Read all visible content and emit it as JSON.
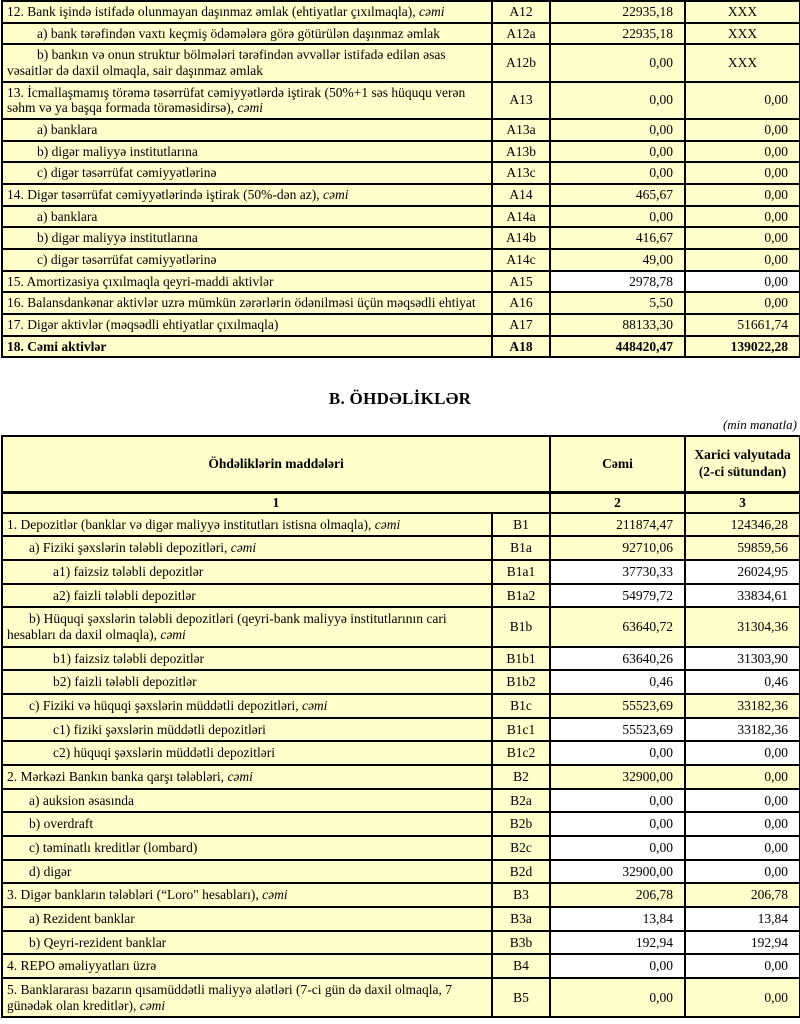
{
  "page": {
    "section_b_title": "B. ÖHDƏLİKLƏR",
    "unit_note": "(min manatla)"
  },
  "assets_table": {
    "rows": [
      {
        "code": "A12",
        "label": "12. Bank işində istifadə olunmayan daşınmaz əmlak (ehtiyatlar çıxılmaqla), ",
        "suffix": "cəmi",
        "indent": 0,
        "total": "22935,18",
        "foreign": "XXX"
      },
      {
        "code": "A12a",
        "label": "a) bank tərəfindən vaxtı keçmiş ödəmələrə görə götürülən daşınmaz əmlak",
        "indent": 1,
        "total": "22935,18",
        "foreign": "XXX"
      },
      {
        "code": "A12b",
        "label": "b) bankın və onun struktur bölmələri tərəfindən əvvəllər istifadə edilən əsas vəsaitlər də daxil olmaqla, sair daşınmaz əmlak",
        "indent": 1,
        "total": "0,00",
        "foreign": "XXX"
      },
      {
        "code": "A13",
        "label": "13. İcmallaşmamış törəmə təsərrüfat cəmiyyətlərdə iştirak (50%+1 səs hüququ verən səhm və ya başqa formada törəməsidirsə), ",
        "suffix": "cəmi",
        "indent": 0,
        "total": "0,00",
        "foreign": "0,00"
      },
      {
        "code": "A13a",
        "label": "a) banklara",
        "indent": 1,
        "total": "0,00",
        "foreign": "0,00"
      },
      {
        "code": "A13b",
        "label": "b) digər maliyyə institutlarına",
        "indent": 1,
        "total": "0,00",
        "foreign": "0,00"
      },
      {
        "code": "A13c",
        "label": "c) digər təsərrüfat cəmiyyətlərinə",
        "indent": 1,
        "total": "0,00",
        "foreign": "0,00"
      },
      {
        "code": "A14",
        "label": "14. Digər təsərrüfat cəmiyyətlərində iştirak (50%-dən az), ",
        "suffix": "cəmi",
        "indent": 0,
        "total": "465,67",
        "foreign": "0,00"
      },
      {
        "code": "A14a",
        "label": "a) banklara",
        "indent": 1,
        "total": "0,00",
        "foreign": "0,00"
      },
      {
        "code": "A14b",
        "label": "b) digər maliyyə institutlarına",
        "indent": 1,
        "total": "416,67",
        "foreign": "0,00"
      },
      {
        "code": "A14c",
        "label": "c) digər təsərrüfat cəmiyyətlərinə",
        "indent": 1,
        "total": "49,00",
        "foreign": "0,00"
      },
      {
        "code": "A15",
        "label": "15. Amortizasiya çıxılmaqla qeyri-maddi aktivlər",
        "indent": 0,
        "total": "2978,78",
        "foreign": "0,00",
        "white_values": true
      },
      {
        "code": "A16",
        "label": "16. Balansdankənar aktivlər uzrə mümkün zərərlərin ödənilməsi üçün məqsədli ehtiyat",
        "indent": 0,
        "total": "5,50",
        "foreign": "0,00"
      },
      {
        "code": "A17",
        "label": "17. Digər aktivlər (məqsədli ehtiyatlar çıxılmaqla)",
        "indent": 0,
        "total": "88133,30",
        "foreign": "51661,74"
      },
      {
        "code": "A18",
        "label": "18. Cəmi aktivlər",
        "indent": 0,
        "total": "448420,47",
        "foreign": "139022,28",
        "bold": true
      }
    ]
  },
  "liabilities_table": {
    "header": {
      "items": "Öhdəliklərin maddələri",
      "total": "Cəmi",
      "foreign": "Xarici valyutada (2-ci sütundan)",
      "num1": "1",
      "num2": "2",
      "num3": "3"
    },
    "rows": [
      {
        "code": "B1",
        "label": "1. Depozitlər (banklar və digər maliyyə institutları istisna olmaqla), ",
        "suffix": "cəmi",
        "indent": 0,
        "total": "211874,47",
        "foreign": "124346,28"
      },
      {
        "code": "B1a",
        "label": "a)  Fiziki şəxslərin tələbli depozitləri, ",
        "suffix": "cəmi",
        "indent": 1,
        "total": "92710,06",
        "foreign": "59859,56"
      },
      {
        "code": "B1a1",
        "label": "a1) faizsiz tələbli depozitlər",
        "indent": 2,
        "total": "37730,33",
        "foreign": "26024,95",
        "white_values": true
      },
      {
        "code": "B1a2",
        "label": "a2) faizli tələbli depozitlər",
        "indent": 2,
        "total": "54979,72",
        "foreign": "33834,61",
        "white_values": true
      },
      {
        "code": "B1b",
        "label": "b) Hüquqi şəxslərin tələbli depozitləri (qeyri-bank maliyyə institutlarının cari hesabları da daxil olmaqla), ",
        "suffix": "cəmi",
        "indent": 1,
        "total": "63640,72",
        "foreign": "31304,36"
      },
      {
        "code": "B1b1",
        "label": "b1) faizsiz tələbli depozitlər",
        "indent": 2,
        "total": "63640,26",
        "foreign": "31303,90",
        "white_values": true
      },
      {
        "code": "B1b2",
        "label": "b2) faizli tələbli depozitlər",
        "indent": 2,
        "total": "0,46",
        "foreign": "0,46",
        "white_values": true
      },
      {
        "code": "B1c",
        "label": "c) Fiziki və hüquqi şəxslərin müddətli depozitləri, ",
        "suffix": "cəmi",
        "indent": 1,
        "total": "55523,69",
        "foreign": "33182,36"
      },
      {
        "code": "B1c1",
        "label": "c1) fiziki şəxslərin müddətli depozitləri",
        "indent": 2,
        "total": "55523,69",
        "foreign": "33182,36",
        "white_values": true
      },
      {
        "code": "B1c2",
        "label": "c2) hüquqi şəxslərin müddətli depozitləri",
        "indent": 2,
        "total": "0,00",
        "foreign": "0,00",
        "white_values": true
      },
      {
        "code": "B2",
        "label": "2. Mərkəzi Bankın banka qarşı tələbləri, ",
        "suffix": "cəmi",
        "indent": 0,
        "total": "32900,00",
        "foreign": "0,00"
      },
      {
        "code": "B2a",
        "label": "a) auksion əsasında",
        "indent": 1,
        "total": "0,00",
        "foreign": "0,00",
        "white_values": true
      },
      {
        "code": "B2b",
        "label": "b) overdraft",
        "indent": 1,
        "total": "0,00",
        "foreign": "0,00",
        "white_values": true
      },
      {
        "code": "B2c",
        "label": "c) təminatlı kreditlər (lombard)",
        "indent": 1,
        "total": "0,00",
        "foreign": "0,00",
        "white_values": true
      },
      {
        "code": "B2d",
        "label": "d) digər",
        "indent": 1,
        "total": "32900,00",
        "foreign": "0,00",
        "white_values": true
      },
      {
        "code": "B3",
        "label": "3. Digər bankların tələbləri (“Loro\" hesabları), ",
        "suffix": "cəmi",
        "indent": 0,
        "total": "206,78",
        "foreign": "206,78"
      },
      {
        "code": "B3a",
        "label": "a) Rezident banklar",
        "indent": 1,
        "total": "13,84",
        "foreign": "13,84",
        "white_values": true
      },
      {
        "code": "B3b",
        "label": "b) Qeyri-rezident banklar",
        "indent": 1,
        "total": "192,94",
        "foreign": "192,94",
        "white_values": true
      },
      {
        "code": "B4",
        "label": "4. REPO əməliyyatları  üzrə",
        "indent": 0,
        "total": "0,00",
        "foreign": "0,00",
        "white_values": true
      },
      {
        "code": "B5",
        "label": "5. Banklararası bazarın qısamüddətli maliyyə alətləri (7-ci gün də daxil olmaqla, 7 günədək olan kreditlər), ",
        "suffix": "cəmi",
        "indent": 0,
        "total": "0,00",
        "foreign": "0,00"
      }
    ]
  }
}
